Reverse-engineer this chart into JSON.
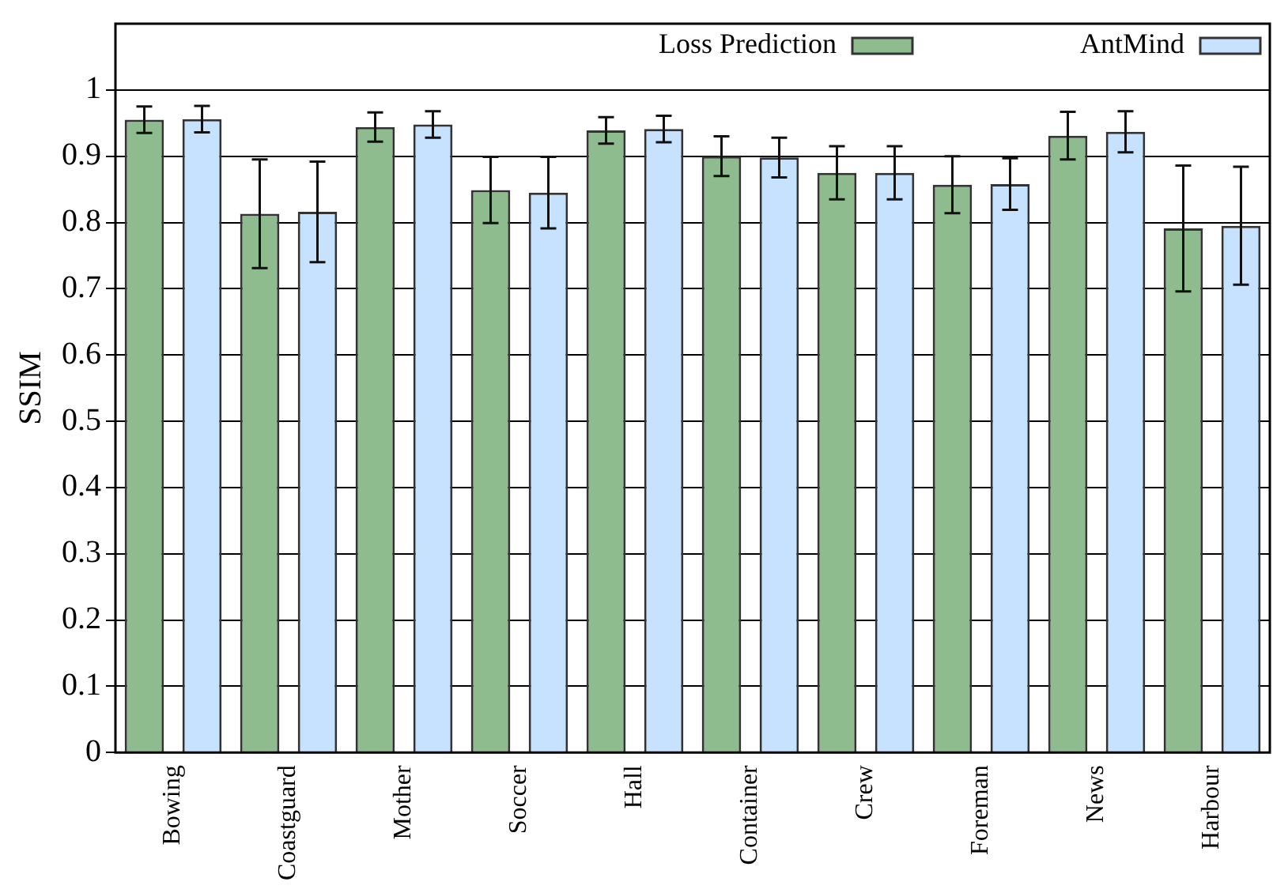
{
  "chart_data": {
    "type": "bar",
    "ylabel": "SSIM",
    "categories": [
      "Bowing",
      "Coastguard",
      "Mother",
      "Soccer",
      "Hall",
      "Container",
      "Crew",
      "Foreman",
      "News",
      "Harbour"
    ],
    "series": [
      {
        "name": "Loss Prediction",
        "color": "#8fbc8f",
        "values": [
          0.955,
          0.813,
          0.944,
          0.849,
          0.939,
          0.9,
          0.875,
          0.857,
          0.931,
          0.791
        ],
        "errors": [
          0.02,
          0.082,
          0.022,
          0.05,
          0.02,
          0.03,
          0.04,
          0.043,
          0.036,
          0.095
        ]
      },
      {
        "name": "AntMind",
        "color": "#c6e2ff",
        "values": [
          0.956,
          0.816,
          0.948,
          0.845,
          0.941,
          0.898,
          0.875,
          0.858,
          0.937,
          0.795
        ],
        "errors": [
          0.02,
          0.076,
          0.02,
          0.054,
          0.02,
          0.03,
          0.04,
          0.039,
          0.031,
          0.089
        ]
      }
    ],
    "ylim": [
      0,
      1.1
    ],
    "yticks": [
      0,
      0.1,
      0.2,
      0.3,
      0.4,
      0.5,
      0.6,
      0.7,
      0.8,
      0.9,
      1
    ],
    "grid": "y",
    "legend": "top right"
  }
}
